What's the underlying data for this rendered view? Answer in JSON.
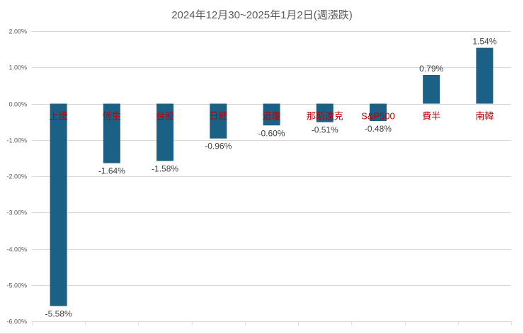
{
  "chart_data": {
    "type": "bar",
    "title": "2024年12月30~2025年1月2日(週漲跌)",
    "xlabel": "",
    "ylabel": "",
    "categories": [
      "上證",
      "恆生",
      "台股",
      "日經",
      "道瓊",
      "那斯達克",
      "S&P500",
      "費半",
      "南韓"
    ],
    "values": [
      -5.58,
      -1.64,
      -1.58,
      -0.96,
      -0.6,
      -0.51,
      -0.48,
      0.79,
      1.54
    ],
    "data_labels": [
      "-5.58%",
      "-1.64%",
      "-1.58%",
      "-0.96%",
      "-0.60%",
      "-0.51%",
      "-0.48%",
      "0.79%",
      "1.54%"
    ],
    "ylim": [
      -6.0,
      2.0
    ],
    "y_ticks": [
      2.0,
      1.0,
      0.0,
      -1.0,
      -2.0,
      -3.0,
      -4.0,
      -5.0,
      -6.0
    ],
    "y_tick_labels": [
      "2.00%",
      "1.00%",
      "0.00%",
      "-1.00%",
      "-2.00%",
      "-3.00%",
      "-4.00%",
      "-5.00%",
      "-6.00%"
    ],
    "grid": true,
    "legend": "none",
    "colors": {
      "bar": "#1b6185",
      "category_label": "#c00000",
      "gridline": "#d9d9d9",
      "axis_text": "#595959",
      "title": "#595959",
      "data_label": "#404040"
    }
  }
}
